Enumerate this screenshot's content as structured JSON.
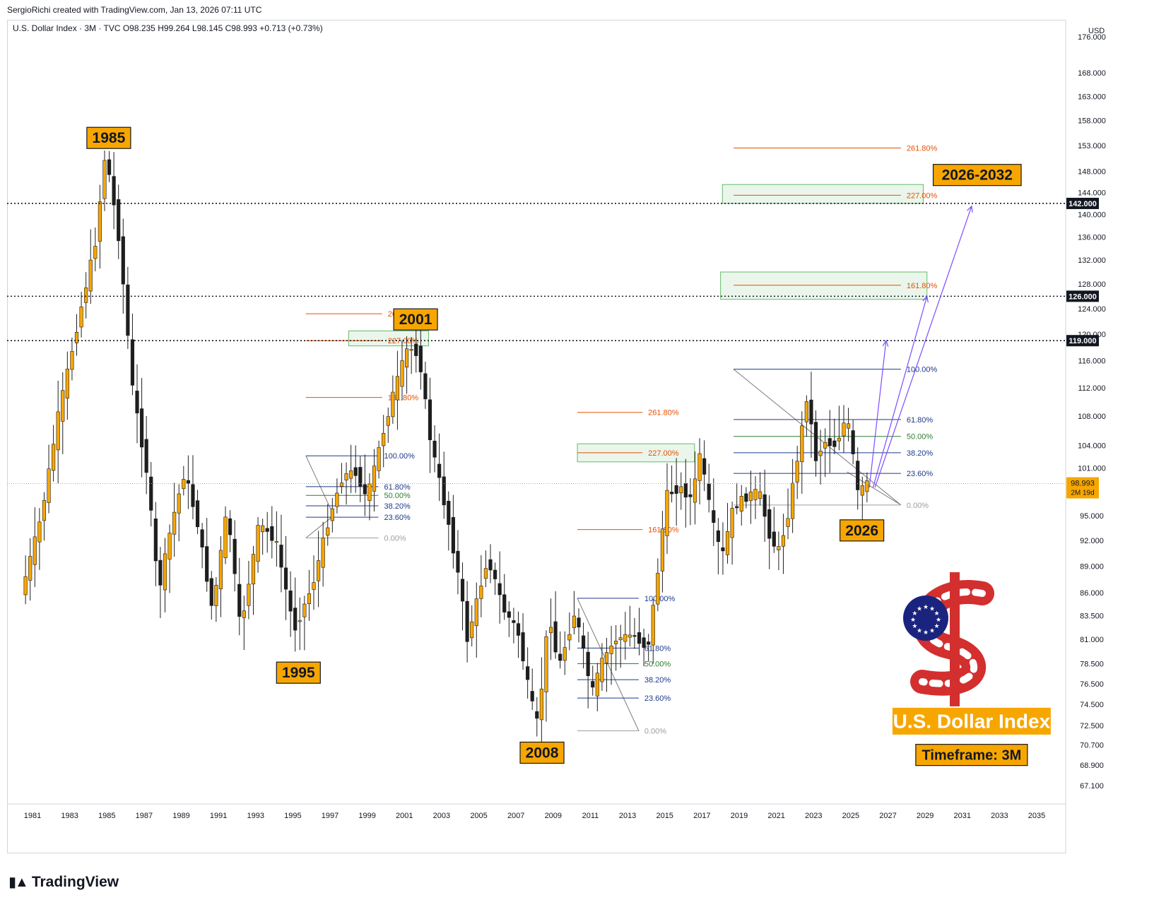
{
  "header": {
    "credit": "SergioRichi created with TradingView.com, Jan 13, 2026 07:11 UTC",
    "legend": "U.S. Dollar Index · 3M · TVC  O98.235  H99.264  L98.145  C98.993  +0.713 (+0.73%)",
    "currency": "USD"
  },
  "footer": {
    "logo_text": "TradingView"
  },
  "colors": {
    "up": "#f7a600",
    "down": "#1e1e1e",
    "label_bg": "#f7a600",
    "fib_orange": "#e65100",
    "fib_blue": "#1e3a8a",
    "fib_green": "#2e7d32",
    "fib_gray": "#9e9e9e",
    "zone_fill": "#e8f5e9",
    "zone_border": "#66bb6a",
    "projection": "#7c4dff"
  },
  "chart_data": {
    "type": "candlestick",
    "title": "U.S. Dollar Index",
    "subtitle": "Timeframe: 3M",
    "ylim": [
      67.1,
      176.0
    ],
    "xlim": [
      1980.0,
      2036.0
    ],
    "y_scale": "log",
    "price_axis_ticks": [
      "176.000",
      "168.000",
      "163.000",
      "158.000",
      "153.000",
      "148.000",
      "144.000",
      "140.000",
      "136.000",
      "132.000",
      "128.000",
      "124.000",
      "120.000",
      "116.000",
      "112.000",
      "108.000",
      "104.000",
      "101.000",
      "95.000",
      "92.000",
      "89.000",
      "86.000",
      "83.500",
      "81.000",
      "78.500",
      "76.500",
      "74.500",
      "72.500",
      "70.700",
      "68.900",
      "67.100"
    ],
    "time_axis_ticks": [
      "1981",
      "1983",
      "1985",
      "1987",
      "1989",
      "1991",
      "1993",
      "1995",
      "1997",
      "1999",
      "2001",
      "2003",
      "2005",
      "2007",
      "2009",
      "2011",
      "2013",
      "2015",
      "2017",
      "2019",
      "2021",
      "2023",
      "2025",
      "2027",
      "2029",
      "2031",
      "2033",
      "2035"
    ],
    "horizontal_levels": [
      {
        "price": 142.0,
        "label": "142.000"
      },
      {
        "price": 126.0,
        "label": "126.000"
      },
      {
        "price": 119.0,
        "label": "119.000"
      }
    ],
    "last_price": {
      "price": 98.993,
      "label": "98.993",
      "countdown": "2M 19d"
    },
    "annotations": [
      {
        "text": "1985",
        "x": 1985.1,
        "y": 154.5
      },
      {
        "text": "1995",
        "x": 1995.3,
        "y": 77.6
      },
      {
        "text": "2001",
        "x": 2001.6,
        "y": 122.3
      },
      {
        "text": "2008",
        "x": 2008.4,
        "y": 70.0
      },
      {
        "text": "2026",
        "x": 2025.6,
        "y": 93.2
      },
      {
        "text": "2026-2032",
        "x": 2031.8,
        "y": 147.3
      }
    ],
    "info_labels": [
      {
        "text": "U.S. Dollar Index",
        "x": 2031.5,
        "y": 72.9
      },
      {
        "text": "Timeframe: 3M",
        "x": 2031.5,
        "y": 69.8
      }
    ],
    "pivots": [
      [
        1980.5,
        85.8
      ],
      [
        1981.6,
        95.0
      ],
      [
        1982.5,
        108.0
      ],
      [
        1983.5,
        121.0
      ],
      [
        1984.5,
        135.0
      ],
      [
        1985.05,
        152.0
      ],
      [
        1985.8,
        135.0
      ],
      [
        1986.5,
        112.0
      ],
      [
        1987.3,
        100.0
      ],
      [
        1987.9,
        86.0
      ],
      [
        1988.6,
        94.0
      ],
      [
        1989.3,
        100.5
      ],
      [
        1990.0,
        94.0
      ],
      [
        1990.8,
        84.0
      ],
      [
        1991.6,
        96.0
      ],
      [
        1992.3,
        82.0
      ],
      [
        1993.3,
        94.0
      ],
      [
        1994.2,
        92.0
      ],
      [
        1995.2,
        82.0
      ],
      [
        1996.2,
        87.0
      ],
      [
        1997.1,
        95.0
      ],
      [
        1997.8,
        100.0
      ],
      [
        1998.5,
        100.5
      ],
      [
        1999.1,
        97.0
      ],
      [
        1999.7,
        103.0
      ],
      [
        2000.5,
        111.0
      ],
      [
        2001.3,
        118.0
      ],
      [
        2001.9,
        117.0
      ],
      [
        2002.5,
        105.0
      ],
      [
        2003.5,
        94.0
      ],
      [
        2004.1,
        87.0
      ],
      [
        2004.5,
        81.0
      ],
      [
        2005.6,
        90.0
      ],
      [
        2006.5,
        84.0
      ],
      [
        2007.2,
        82.0
      ],
      [
        2007.9,
        75.0
      ],
      [
        2008.3,
        72.5
      ],
      [
        2008.9,
        84.0
      ],
      [
        2009.4,
        78.0
      ],
      [
        2010.3,
        84.0
      ],
      [
        2011.2,
        75.5
      ],
      [
        2011.8,
        79.0
      ],
      [
        2012.5,
        81.0
      ],
      [
        2013.4,
        81.5
      ],
      [
        2014.2,
        80.0
      ],
      [
        2014.7,
        87.5
      ],
      [
        2015.2,
        97.5
      ],
      [
        2015.9,
        98.5
      ],
      [
        2016.6,
        97.0
      ],
      [
        2017.0,
        103.0
      ],
      [
        2017.7,
        94.0
      ],
      [
        2018.2,
        90.0
      ],
      [
        2018.8,
        96.0
      ],
      [
        2019.6,
        97.5
      ],
      [
        2020.2,
        98.0
      ],
      [
        2020.7,
        93.0
      ],
      [
        2021.2,
        90.5
      ],
      [
        2021.7,
        94.5
      ],
      [
        2022.3,
        103.0
      ],
      [
        2022.8,
        111.5
      ],
      [
        2023.2,
        102.0
      ],
      [
        2023.7,
        104.5
      ],
      [
        2024.3,
        104.0
      ],
      [
        2024.9,
        108.0
      ],
      [
        2025.2,
        103.5
      ],
      [
        2025.5,
        97.8
      ],
      [
        2025.9,
        98.99
      ]
    ],
    "fibonacci": [
      {
        "name": "fib-1995-2001",
        "levels": [
          {
            "label": "261.80%",
            "price": 123.2,
            "x1": 1995.7,
            "x2": 1999.8,
            "color": "orange"
          },
          {
            "label": "227.00%",
            "price": 119.0,
            "x1": 1995.7,
            "x2": 1999.8,
            "color": "orange"
          },
          {
            "label": "161.80%",
            "price": 110.6,
            "x1": 1995.7,
            "x2": 1999.8,
            "color": "orange"
          },
          {
            "label": "100.00%",
            "price": 102.6,
            "x1": 1995.7,
            "x2": 1999.6,
            "color": "blue"
          },
          {
            "label": "61.80%",
            "price": 98.6,
            "x1": 1995.7,
            "x2": 1999.6,
            "color": "blue"
          },
          {
            "label": "50.00%",
            "price": 97.5,
            "x1": 1995.7,
            "x2": 1999.6,
            "color": "green"
          },
          {
            "label": "38.20%",
            "price": 96.2,
            "x1": 1995.7,
            "x2": 1999.6,
            "color": "blue"
          },
          {
            "label": "23.60%",
            "price": 94.8,
            "x1": 1995.7,
            "x2": 1999.6,
            "color": "blue"
          },
          {
            "label": "0.00%",
            "price": 92.3,
            "x1": 1995.7,
            "x2": 1999.6,
            "color": "gray"
          }
        ]
      },
      {
        "name": "fib-2011-2017",
        "levels": [
          {
            "label": "261.80%",
            "price": 108.5,
            "x1": 2010.3,
            "x2": 2013.8,
            "color": "orange"
          },
          {
            "label": "227.00%",
            "price": 103.0,
            "x1": 2010.3,
            "x2": 2013.8,
            "color": "orange"
          },
          {
            "label": "161.80%",
            "price": 93.3,
            "x1": 2010.3,
            "x2": 2013.8,
            "color": "orange"
          },
          {
            "label": "100.00%",
            "price": 85.4,
            "x1": 2010.3,
            "x2": 2013.6,
            "color": "blue"
          },
          {
            "label": "61.80%",
            "price": 80.1,
            "x1": 2010.3,
            "x2": 2013.6,
            "color": "blue"
          },
          {
            "label": "50.00%",
            "price": 78.5,
            "x1": 2010.3,
            "x2": 2013.6,
            "color": "green"
          },
          {
            "label": "38.20%",
            "price": 76.9,
            "x1": 2010.3,
            "x2": 2013.6,
            "color": "blue"
          },
          {
            "label": "23.60%",
            "price": 75.1,
            "x1": 2010.3,
            "x2": 2013.6,
            "color": "blue"
          },
          {
            "label": "0.00%",
            "price": 72.0,
            "x1": 2010.3,
            "x2": 2013.6,
            "color": "gray"
          }
        ]
      },
      {
        "name": "fib-2026",
        "levels": [
          {
            "label": "261.80%",
            "price": 152.5,
            "x1": 2018.7,
            "x2": 2027.7,
            "color": "orange"
          },
          {
            "label": "227.00%",
            "price": 143.5,
            "x1": 2018.7,
            "x2": 2027.7,
            "color": "orange"
          },
          {
            "label": "161.80%",
            "price": 127.8,
            "x1": 2018.7,
            "x2": 2027.7,
            "color": "orange"
          },
          {
            "label": "100.00%",
            "price": 114.7,
            "x1": 2018.7,
            "x2": 2027.7,
            "color": "blue"
          },
          {
            "label": "61.80%",
            "price": 107.5,
            "x1": 2018.7,
            "x2": 2027.7,
            "color": "blue"
          },
          {
            "label": "50.00%",
            "price": 105.2,
            "x1": 2018.7,
            "x2": 2027.7,
            "color": "green"
          },
          {
            "label": "38.20%",
            "price": 103.0,
            "x1": 2018.7,
            "x2": 2027.7,
            "color": "blue"
          },
          {
            "label": "23.60%",
            "price": 100.3,
            "x1": 2018.7,
            "x2": 2027.7,
            "color": "blue"
          },
          {
            "label": "0.00%",
            "price": 96.3,
            "x1": 2018.7,
            "x2": 2027.7,
            "color": "gray"
          }
        ]
      }
    ],
    "zones": [
      {
        "x1": 1998.0,
        "x2": 2002.3,
        "y1": 118.2,
        "y2": 120.5
      },
      {
        "x1": 2010.3,
        "x2": 2016.6,
        "y1": 101.8,
        "y2": 104.2
      },
      {
        "x1": 2018.1,
        "x2": 2028.9,
        "y1": 142.0,
        "y2": 145.5
      },
      {
        "x1": 2018.0,
        "x2": 2029.1,
        "y1": 125.5,
        "y2": 130.0
      }
    ],
    "fib_triangles": [
      [
        [
          1995.7,
          102.6
        ],
        [
          1997.2,
          95.0
        ],
        [
          1995.7,
          92.3
        ]
      ],
      [
        [
          2010.3,
          85.4
        ],
        [
          2013.6,
          72.0
        ],
        [
          2010.3,
          72.0
        ]
      ],
      [
        [
          2018.7,
          114.7
        ],
        [
          2027.7,
          96.3
        ],
        [
          2024.8,
          100.5
        ]
      ]
    ],
    "projections": [
      [
        [
          2026.0,
          98.5
        ],
        [
          2026.9,
          119.0
        ]
      ],
      [
        [
          2026.2,
          98.5
        ],
        [
          2029.1,
          126.0
        ]
      ],
      [
        [
          2026.3,
          98.5
        ],
        [
          2031.5,
          141.5
        ]
      ]
    ]
  }
}
